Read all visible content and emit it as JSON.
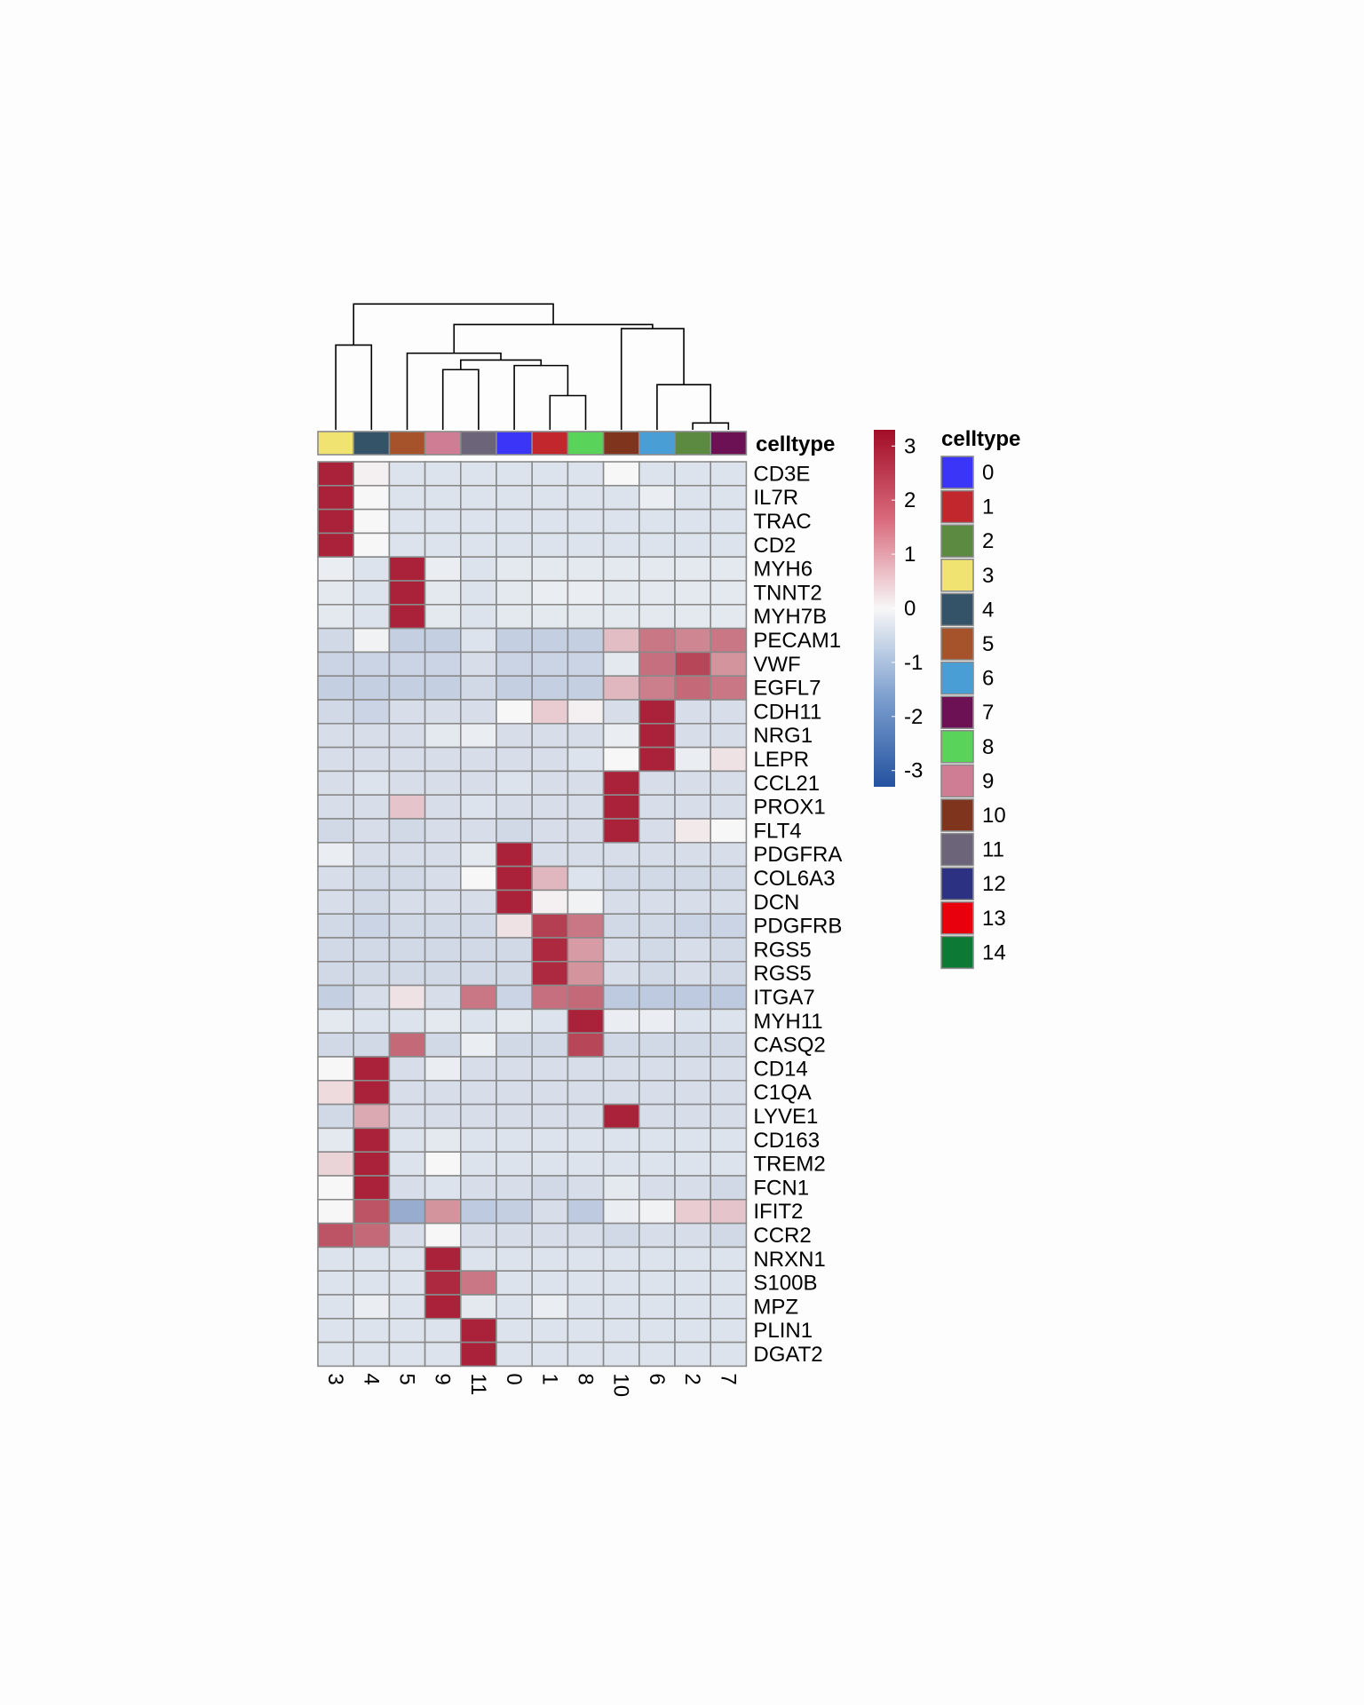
{
  "chart_data": {
    "type": "heatmap",
    "annotation_label": "celltype",
    "columns": [
      "3",
      "4",
      "5",
      "9",
      "11",
      "0",
      "1",
      "8",
      "10",
      "6",
      "2",
      "7"
    ],
    "rows": [
      "CD3E",
      "IL7R",
      "TRAC",
      "CD2",
      "MYH6",
      "TNNT2",
      "MYH7B",
      "PECAM1",
      "VWF",
      "EGFL7",
      "CDH11",
      "NRG1",
      "LEPR",
      "CCL21",
      "PROX1",
      "FLT4",
      "PDGFRA",
      "COL6A3",
      "DCN",
      "PDGFRB",
      "RGS5",
      "RGS5",
      "ITGA7",
      "MYH11",
      "CASQ2",
      "CD14",
      "C1QA",
      "LYVE1",
      "CD163",
      "TREM2",
      "FCN1",
      "IFIT2",
      "CCR2",
      "NRXN1",
      "S100B",
      "MPZ",
      "PLIN1",
      "DGAT2"
    ],
    "values": [
      [
        3.0,
        0.1,
        -0.4,
        -0.4,
        -0.4,
        -0.4,
        -0.4,
        -0.4,
        0.0,
        -0.4,
        -0.4,
        -0.4
      ],
      [
        3.0,
        0.0,
        -0.4,
        -0.4,
        -0.4,
        -0.4,
        -0.4,
        -0.4,
        -0.4,
        -0.2,
        -0.4,
        -0.4
      ],
      [
        3.0,
        0.0,
        -0.4,
        -0.4,
        -0.4,
        -0.4,
        -0.4,
        -0.4,
        -0.4,
        -0.4,
        -0.4,
        -0.4
      ],
      [
        3.0,
        0.0,
        -0.4,
        -0.4,
        -0.4,
        -0.4,
        -0.4,
        -0.4,
        -0.4,
        -0.4,
        -0.4,
        -0.4
      ],
      [
        -0.2,
        -0.4,
        3.0,
        -0.2,
        -0.4,
        -0.3,
        -0.3,
        -0.3,
        -0.3,
        -0.3,
        -0.3,
        -0.3
      ],
      [
        -0.3,
        -0.4,
        3.0,
        -0.3,
        -0.4,
        -0.3,
        -0.2,
        -0.2,
        -0.3,
        -0.3,
        -0.3,
        -0.3
      ],
      [
        -0.3,
        -0.4,
        3.0,
        -0.3,
        -0.4,
        -0.3,
        -0.3,
        -0.3,
        -0.3,
        -0.3,
        -0.3,
        -0.3
      ],
      [
        -0.6,
        -0.1,
        -0.8,
        -0.8,
        -0.4,
        -0.8,
        -0.8,
        -0.8,
        0.8,
        1.8,
        1.6,
        1.8
      ],
      [
        -0.7,
        -0.7,
        -0.7,
        -0.7,
        -0.5,
        -0.7,
        -0.7,
        -0.7,
        -0.3,
        1.9,
        2.5,
        1.4
      ],
      [
        -0.8,
        -0.8,
        -0.8,
        -0.8,
        -0.6,
        -0.8,
        -0.8,
        -0.8,
        0.9,
        1.7,
        2.0,
        1.8
      ],
      [
        -0.6,
        -0.7,
        -0.5,
        -0.5,
        -0.5,
        0.0,
        0.6,
        0.1,
        -0.5,
        3.0,
        -0.5,
        -0.5
      ],
      [
        -0.5,
        -0.5,
        -0.5,
        -0.3,
        -0.2,
        -0.5,
        -0.5,
        -0.5,
        -0.2,
        3.0,
        -0.5,
        -0.5
      ],
      [
        -0.5,
        -0.5,
        -0.5,
        -0.5,
        -0.5,
        -0.5,
        -0.5,
        -0.4,
        0.0,
        3.0,
        -0.2,
        0.3
      ],
      [
        -0.5,
        -0.4,
        -0.5,
        -0.5,
        -0.5,
        -0.4,
        -0.5,
        -0.5,
        3.0,
        -0.5,
        -0.5,
        -0.5
      ],
      [
        -0.5,
        -0.5,
        0.7,
        -0.5,
        -0.4,
        -0.5,
        -0.5,
        -0.5,
        3.0,
        -0.5,
        -0.5,
        -0.5
      ],
      [
        -0.6,
        -0.5,
        -0.6,
        -0.5,
        -0.5,
        -0.6,
        -0.5,
        -0.5,
        3.0,
        -0.5,
        0.2,
        -0.0
      ],
      [
        -0.2,
        -0.5,
        -0.5,
        -0.5,
        -0.3,
        3.0,
        -0.5,
        -0.5,
        -0.5,
        -0.5,
        -0.5,
        -0.5
      ],
      [
        -0.5,
        -0.6,
        -0.6,
        -0.5,
        0.0,
        3.0,
        0.9,
        -0.4,
        -0.6,
        -0.6,
        -0.6,
        -0.6
      ],
      [
        -0.5,
        -0.6,
        -0.5,
        -0.5,
        -0.5,
        3.0,
        0.1,
        -0.1,
        -0.5,
        -0.5,
        -0.5,
        -0.5
      ],
      [
        -0.6,
        -0.7,
        -0.6,
        -0.6,
        -0.6,
        0.3,
        2.6,
        1.8,
        -0.6,
        -0.6,
        -0.7,
        -0.7
      ],
      [
        -0.6,
        -0.6,
        -0.6,
        -0.6,
        -0.6,
        -0.6,
        2.9,
        1.3,
        -0.5,
        -0.6,
        -0.5,
        -0.6
      ],
      [
        -0.6,
        -0.6,
        -0.6,
        -0.6,
        -0.6,
        -0.6,
        2.9,
        1.4,
        -0.5,
        -0.6,
        -0.5,
        -0.6
      ],
      [
        -0.8,
        -0.5,
        0.3,
        -0.5,
        1.8,
        -0.7,
        1.9,
        2.0,
        -0.9,
        -0.9,
        -0.9,
        -0.9
      ],
      [
        -0.3,
        -0.4,
        -0.4,
        -0.3,
        -0.4,
        -0.3,
        -0.4,
        3.0,
        -0.2,
        -0.2,
        -0.4,
        -0.4
      ],
      [
        -0.6,
        -0.6,
        2.0,
        -0.6,
        -0.2,
        -0.6,
        -0.6,
        2.5,
        -0.6,
        -0.6,
        -0.6,
        -0.6
      ],
      [
        0.0,
        3.0,
        -0.5,
        -0.2,
        -0.5,
        -0.5,
        -0.5,
        -0.5,
        -0.5,
        -0.5,
        -0.5,
        -0.5
      ],
      [
        0.4,
        3.0,
        -0.5,
        -0.5,
        -0.5,
        -0.5,
        -0.5,
        -0.5,
        -0.5,
        -0.5,
        -0.5,
        -0.5
      ],
      [
        -0.6,
        1.1,
        -0.5,
        -0.5,
        -0.5,
        -0.5,
        -0.5,
        -0.5,
        3.0,
        -0.5,
        -0.5,
        -0.5
      ],
      [
        -0.3,
        3.0,
        -0.4,
        -0.3,
        -0.4,
        -0.4,
        -0.4,
        -0.4,
        -0.4,
        -0.4,
        -0.4,
        -0.4
      ],
      [
        0.5,
        3.0,
        -0.4,
        0.0,
        -0.4,
        -0.4,
        -0.4,
        -0.4,
        -0.4,
        -0.4,
        -0.4,
        -0.4
      ],
      [
        0.0,
        3.0,
        -0.5,
        -0.4,
        -0.5,
        -0.5,
        -0.6,
        -0.5,
        -0.3,
        -0.5,
        -0.5,
        -0.6
      ],
      [
        0.0,
        2.3,
        -1.5,
        1.4,
        -0.9,
        -0.8,
        -0.5,
        -0.9,
        -0.2,
        -0.1,
        0.6,
        0.7
      ],
      [
        2.3,
        2.0,
        -0.5,
        0.0,
        -0.5,
        -0.5,
        -0.5,
        -0.5,
        -0.6,
        -0.5,
        -0.5,
        -0.6
      ],
      [
        -0.4,
        -0.4,
        -0.4,
        3.0,
        -0.4,
        -0.4,
        -0.4,
        -0.4,
        -0.4,
        -0.4,
        -0.4,
        -0.4
      ],
      [
        -0.4,
        -0.4,
        -0.4,
        2.9,
        1.8,
        -0.4,
        -0.4,
        -0.4,
        -0.4,
        -0.4,
        -0.4,
        -0.4
      ],
      [
        -0.4,
        -0.2,
        -0.4,
        3.0,
        -0.3,
        -0.4,
        -0.2,
        -0.4,
        -0.4,
        -0.4,
        -0.4,
        -0.4
      ],
      [
        -0.4,
        -0.4,
        -0.4,
        -0.4,
        3.0,
        -0.4,
        -0.4,
        -0.4,
        -0.4,
        -0.4,
        -0.4,
        -0.4
      ],
      [
        -0.4,
        -0.4,
        -0.4,
        -0.4,
        3.0,
        -0.4,
        -0.4,
        -0.4,
        -0.4,
        -0.4,
        -0.4,
        -0.4
      ]
    ],
    "scale_range": [
      -3.3,
      3.3
    ],
    "colorbar_ticks": [
      "3",
      "2",
      "1",
      "0",
      "-1",
      "-2",
      "-3"
    ],
    "colorbar_tick_values": [
      3,
      2,
      1,
      0,
      -1,
      -2,
      -3
    ],
    "scale_colors": {
      "low": "#2452a0",
      "mid": "#f7f7f7",
      "high": "#a20d26"
    },
    "legend_title": "celltype",
    "legend": [
      {
        "label": "0",
        "color": "#3b35f7"
      },
      {
        "label": "1",
        "color": "#c1272d"
      },
      {
        "label": "2",
        "color": "#5b8a40"
      },
      {
        "label": "3",
        "color": "#f0e372"
      },
      {
        "label": "4",
        "color": "#345268"
      },
      {
        "label": "5",
        "color": "#a6522b"
      },
      {
        "label": "6",
        "color": "#4a9ed6"
      },
      {
        "label": "7",
        "color": "#6d1155"
      },
      {
        "label": "8",
        "color": "#5ad35a"
      },
      {
        "label": "9",
        "color": "#cf7d95"
      },
      {
        "label": "10",
        "color": "#7f341d"
      },
      {
        "label": "11",
        "color": "#6c6478"
      },
      {
        "label": "12",
        "color": "#2c3281"
      },
      {
        "label": "13",
        "color": "#e8000c"
      },
      {
        "label": "14",
        "color": "#0c7a35"
      }
    ],
    "dendrogram_merges": [
      {
        "left": "3",
        "right": "4",
        "height": 0.62
      },
      {
        "left": "1",
        "right": "8",
        "height": 0.25
      },
      {
        "left": "2",
        "right": "7",
        "height": 0.05
      },
      {
        "left": "9",
        "right": "11",
        "height": 0.44
      },
      {
        "left": "6",
        "right": "2+7",
        "height": 0.33
      },
      {
        "left": "0",
        "right": "1+8",
        "height": 0.47
      },
      {
        "left": "10",
        "right": "6+2+7",
        "height": 0.74
      },
      {
        "left": "9+11",
        "right": "0+1+8",
        "height": 0.51
      },
      {
        "left": "5",
        "right": "9+11+0+1+8",
        "height": 0.56
      },
      {
        "left": "5+9+11+0+1+8",
        "right": "10+6+2+7",
        "height": 0.77
      },
      {
        "left": "3+4",
        "right": "5+9+11+0+1+8+10+6+2+7",
        "height": 0.92
      }
    ]
  }
}
